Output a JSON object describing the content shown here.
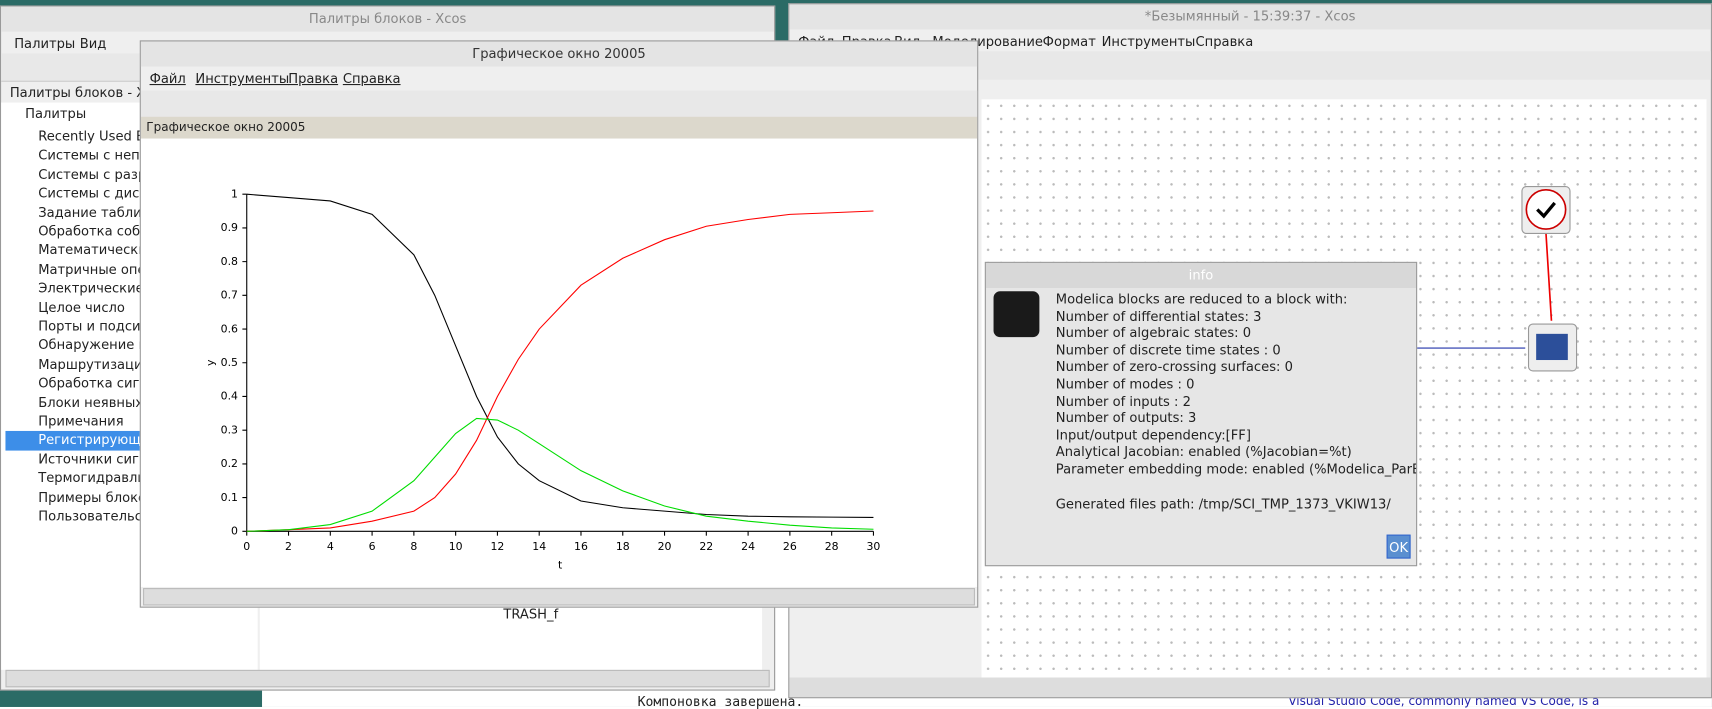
{
  "palette_window": {
    "title": "Палитры блоков - Xcos",
    "menu": [
      "Палитры",
      "Вид"
    ],
    "tree_header": "Палитры блоков - Xcos",
    "root": "Палитры",
    "items": [
      "Recently Used Blo",
      "Системы с непре",
      "Системы с разры",
      "Системы с дискре",
      "Задание табличн",
      "Обработка событ",
      "Математические",
      "Матричные опера",
      "Электрические бл",
      "Целое число",
      "Порты и подсисте",
      "Обнаружение пер",
      "Маршрутизация",
      "Обработка сигна",
      "Блоки неявных да",
      "Примечания",
      "Регистрирующие",
      "Источники сигна",
      "Термогидравличе",
      "Примеры блоков",
      "Пользовательски"
    ],
    "selected": 16,
    "block_label": "TRASH_f"
  },
  "xcos_window": {
    "title": "*Безымянный - 15:39:37 - Xcos",
    "menu": [
      "Файл",
      "Правка",
      "Вид",
      "Моделирование",
      "Формат",
      "Инструменты",
      "Справка"
    ]
  },
  "console": {
    "text": "Компоновка завершена.",
    "browser_text": "Visual Studio Code, commonly named VS Code, is a"
  },
  "graph_window": {
    "title": "Графическое окно 20005",
    "menu": [
      "Файл",
      "Инструменты",
      "Правка",
      "Справка"
    ],
    "subtitle": "Графическое окно 20005"
  },
  "plot": {
    "xlabel": "t",
    "ylabel": "y",
    "xlim": [
      0,
      30
    ],
    "ylim": [
      0,
      1
    ],
    "xticks": [
      0,
      2,
      4,
      6,
      8,
      10,
      12,
      14,
      16,
      18,
      20,
      22,
      24,
      26,
      28,
      30
    ],
    "yticks": [
      0,
      0.1,
      0.2,
      0.3,
      0.4,
      0.5,
      0.6,
      0.7,
      0.8,
      0.9,
      1
    ],
    "x": [
      0,
      2,
      4,
      6,
      8,
      9,
      10,
      11,
      12,
      13,
      14,
      16,
      18,
      20,
      22,
      24,
      26,
      28,
      30
    ],
    "series": [
      {
        "color": "#000000",
        "values": [
          1,
          0.99,
          0.98,
          0.94,
          0.82,
          0.7,
          0.55,
          0.4,
          0.28,
          0.2,
          0.15,
          0.09,
          0.07,
          0.06,
          0.05,
          0.045,
          0.043,
          0.042,
          0.041
        ]
      },
      {
        "color": "#ff0000",
        "values": [
          0,
          0.005,
          0.01,
          0.03,
          0.06,
          0.1,
          0.17,
          0.27,
          0.4,
          0.51,
          0.6,
          0.73,
          0.81,
          0.865,
          0.905,
          0.925,
          0.94,
          0.945,
          0.95
        ]
      },
      {
        "color": "#00dd00",
        "values": [
          0,
          0.005,
          0.02,
          0.06,
          0.15,
          0.22,
          0.29,
          0.335,
          0.33,
          0.3,
          0.26,
          0.18,
          0.12,
          0.075,
          0.045,
          0.03,
          0.018,
          0.01,
          0.006
        ]
      }
    ]
  },
  "info_dialog": {
    "title": "info",
    "lines": [
      "Modelica blocks are reduced to a block with:",
      "Number of differential states: 3",
      "Number of algebraic states: 0",
      "Number of discrete time states : 0",
      "Number of zero-crossing surfaces: 0",
      "Number of modes : 0",
      "Number of inputs : 2",
      "Number of outputs: 3",
      "Input/output dependency:[FF]",
      "Analytical Jacobian: enabled (%Jacobian=%t)",
      "Parameter embedding mode: enabled (%Modelica_ParEmb=%t)"
    ],
    "path": "Generated files path: /tmp/SCI_TMP_1373_VKIW13/",
    "button": "OK"
  }
}
